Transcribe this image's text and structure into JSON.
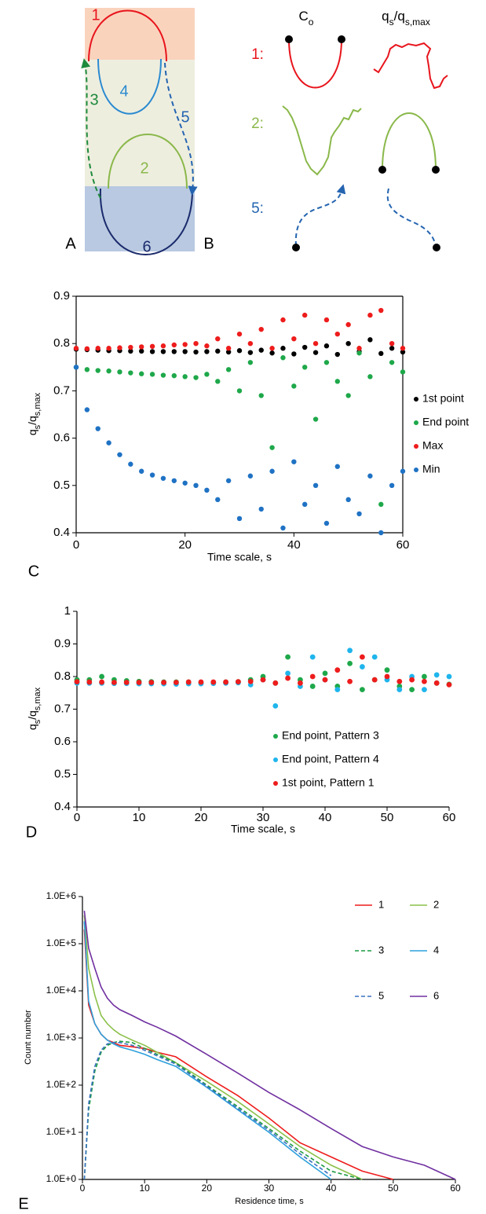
{
  "panel_a": {
    "panel_label": "A",
    "labels": [
      "1",
      "4",
      "2",
      "6",
      "3",
      "5"
    ]
  },
  "panel_b": {
    "panel_label": "B",
    "columns": [
      [
        "C",
        "o"
      ],
      [
        "q",
        "s",
        "/q",
        "s,max"
      ]
    ],
    "rows": [
      "1:",
      "2:",
      "5:"
    ]
  },
  "chart_data": [
    {
      "type": "scatter",
      "panel_label": "C",
      "x_label": "Time scale, s",
      "y_label": [
        "q",
        "s",
        "/q",
        "s,max"
      ],
      "xlim": [
        0,
        60
      ],
      "xticks": [
        0,
        20,
        40,
        60
      ],
      "ylim": [
        0.4,
        0.9
      ],
      "yticks": [
        0.4,
        0.5,
        0.6,
        0.7,
        0.8,
        0.9
      ],
      "legend": "right",
      "series": [
        {
          "name": "1st point",
          "color": "#000000",
          "x": [
            0,
            2,
            4,
            6,
            8,
            10,
            12,
            14,
            16,
            18,
            20,
            22,
            24,
            26,
            28,
            30,
            32,
            34,
            36,
            38,
            40,
            42,
            44,
            46,
            48,
            50,
            52,
            54,
            56,
            58,
            60
          ],
          "values": [
            0.788,
            0.787,
            0.786,
            0.785,
            0.785,
            0.784,
            0.784,
            0.783,
            0.783,
            0.783,
            0.783,
            0.782,
            0.783,
            0.784,
            0.782,
            0.785,
            0.781,
            0.786,
            0.78,
            0.79,
            0.778,
            0.792,
            0.781,
            0.795,
            0.777,
            0.8,
            0.783,
            0.808,
            0.779,
            0.79,
            0.782
          ]
        },
        {
          "name": "End point",
          "color": "#1ea84a",
          "x": [
            0,
            2,
            4,
            6,
            8,
            10,
            12,
            14,
            16,
            18,
            20,
            22,
            24,
            26,
            28,
            30,
            32,
            34,
            36,
            38,
            40,
            42,
            44,
            46,
            48,
            50,
            52,
            54,
            56,
            58,
            60
          ],
          "values": [
            0.75,
            0.745,
            0.743,
            0.742,
            0.74,
            0.738,
            0.736,
            0.735,
            0.733,
            0.732,
            0.73,
            0.728,
            0.735,
            0.72,
            0.745,
            0.7,
            0.76,
            0.69,
            0.58,
            0.77,
            0.71,
            0.75,
            0.64,
            0.76,
            0.72,
            0.69,
            0.78,
            0.73,
            0.46,
            0.76,
            0.74
          ]
        },
        {
          "name": "Max",
          "color": "#ee1c1c",
          "x": [
            0,
            2,
            4,
            6,
            8,
            10,
            12,
            14,
            16,
            18,
            20,
            22,
            24,
            26,
            28,
            30,
            32,
            34,
            36,
            38,
            40,
            42,
            44,
            46,
            48,
            50,
            52,
            54,
            56,
            58,
            60
          ],
          "values": [
            0.79,
            0.789,
            0.79,
            0.79,
            0.791,
            0.792,
            0.793,
            0.794,
            0.795,
            0.797,
            0.798,
            0.8,
            0.795,
            0.81,
            0.79,
            0.82,
            0.8,
            0.83,
            0.79,
            0.85,
            0.81,
            0.86,
            0.8,
            0.85,
            0.82,
            0.84,
            0.79,
            0.86,
            0.87,
            0.8,
            0.79
          ]
        },
        {
          "name": "Min",
          "color": "#1f72c4",
          "x": [
            0,
            2,
            4,
            6,
            8,
            10,
            12,
            14,
            16,
            18,
            20,
            22,
            24,
            26,
            28,
            30,
            32,
            34,
            36,
            38,
            40,
            42,
            44,
            46,
            48,
            50,
            52,
            54,
            56,
            58,
            60
          ],
          "values": [
            0.75,
            0.66,
            0.62,
            0.59,
            0.565,
            0.545,
            0.53,
            0.522,
            0.515,
            0.51,
            0.505,
            0.5,
            0.49,
            0.47,
            0.51,
            0.43,
            0.52,
            0.45,
            0.53,
            0.41,
            0.55,
            0.46,
            0.5,
            0.42,
            0.54,
            0.47,
            0.44,
            0.52,
            0.4,
            0.5,
            0.53
          ]
        }
      ]
    },
    {
      "type": "scatter",
      "panel_label": "D",
      "x_label": "Time scale, s",
      "y_label": [
        "q",
        "s",
        "/q",
        "s,max"
      ],
      "xlim": [
        0,
        60
      ],
      "xticks": [
        0,
        10,
        20,
        30,
        40,
        50,
        60
      ],
      "ylim": [
        0.4,
        1
      ],
      "yticks": [
        0.4,
        0.5,
        0.6,
        0.7,
        0.8,
        0.9,
        1
      ],
      "legend": "lower right",
      "series": [
        {
          "name": "End point, Pattern 3",
          "color": "#1ea84a",
          "x": [
            0,
            2,
            4,
            6,
            8,
            10,
            12,
            14,
            16,
            18,
            20,
            22,
            24,
            26,
            28,
            30,
            32,
            34,
            36,
            38,
            40,
            42,
            44,
            46,
            48,
            50,
            52,
            54,
            56,
            58,
            60
          ],
          "values": [
            0.79,
            0.79,
            0.8,
            0.79,
            0.787,
            0.785,
            0.784,
            0.783,
            0.783,
            0.783,
            0.782,
            0.782,
            0.783,
            0.784,
            0.79,
            0.8,
            0.78,
            0.86,
            0.79,
            0.77,
            0.81,
            0.77,
            0.84,
            0.76,
            0.79,
            0.82,
            0.77,
            0.76,
            0.8,
            0.78,
            0.776
          ]
        },
        {
          "name": "End point, Pattern 4",
          "color": "#1fb5ec",
          "x": [
            0,
            2,
            4,
            6,
            8,
            10,
            12,
            14,
            16,
            18,
            20,
            22,
            24,
            26,
            28,
            30,
            32,
            34,
            36,
            38,
            40,
            42,
            44,
            46,
            48,
            50,
            52,
            54,
            56,
            58,
            60
          ],
          "values": [
            0.78,
            0.78,
            0.78,
            0.779,
            0.779,
            0.778,
            0.778,
            0.778,
            0.777,
            0.778,
            0.778,
            0.779,
            0.78,
            0.781,
            0.775,
            0.79,
            0.71,
            0.81,
            0.77,
            0.86,
            0.79,
            0.76,
            0.88,
            0.83,
            0.86,
            0.79,
            0.76,
            0.8,
            0.76,
            0.805,
            0.8
          ]
        },
        {
          "name": "1st point, Pattern 1",
          "color": "#ee1c1c",
          "x": [
            0,
            2,
            4,
            6,
            8,
            10,
            12,
            14,
            16,
            18,
            20,
            22,
            24,
            26,
            28,
            30,
            32,
            34,
            36,
            38,
            40,
            42,
            44,
            46,
            48,
            50,
            52,
            54,
            56,
            58,
            60
          ],
          "values": [
            0.784,
            0.783,
            0.783,
            0.782,
            0.782,
            0.782,
            0.782,
            0.782,
            0.782,
            0.783,
            0.783,
            0.783,
            0.783,
            0.784,
            0.785,
            0.79,
            0.78,
            0.795,
            0.78,
            0.8,
            0.79,
            0.82,
            0.785,
            0.86,
            0.79,
            0.8,
            0.785,
            0.79,
            0.785,
            0.78,
            0.775
          ]
        }
      ]
    },
    {
      "type": "line",
      "panel_label": "E",
      "x_label": "Residence time, s",
      "y_label": [
        "Count number"
      ],
      "log_y": true,
      "xlim": [
        0,
        60
      ],
      "xticks": [
        0,
        10,
        20,
        30,
        40,
        50,
        60
      ],
      "ylim": [
        1,
        1000000
      ],
      "yticks": [
        {
          "value": 1,
          "label": "1.0E+0"
        },
        {
          "value": 10,
          "label": "1.0E+1"
        },
        {
          "value": 100,
          "label": "1.0E+2"
        },
        {
          "value": 1000,
          "label": "1.0E+3"
        },
        {
          "value": 10000,
          "label": "1.0E+4"
        },
        {
          "value": 100000,
          "label": "1.0E+5"
        },
        {
          "value": 1000000,
          "label": "1.0E+6"
        }
      ],
      "legend": "upper right",
      "x": [
        0.3,
        1,
        2,
        3,
        4,
        5,
        6,
        8,
        10,
        12,
        15,
        20,
        25,
        30,
        35,
        40,
        45,
        50,
        55,
        60
      ],
      "series": [
        {
          "name": "1",
          "color": "#ee1c1c",
          "line_style": "solid",
          "values": [
            200000,
            5000,
            2000,
            1200,
            900,
            800,
            700,
            650,
            600,
            500,
            400,
            150,
            60,
            20,
            6,
            3,
            1.5,
            1,
            null,
            null
          ]
        },
        {
          "name": "2",
          "color": "#8cc04a",
          "line_style": "solid",
          "values": [
            400000,
            30000,
            8000,
            3000,
            2000,
            1500,
            1200,
            900,
            700,
            500,
            300,
            120,
            45,
            15,
            5,
            2,
            1,
            null,
            null,
            null
          ]
        },
        {
          "name": "3",
          "color": "#1a9a40",
          "line_style": "dashed",
          "values": [
            1,
            30,
            200,
            500,
            700,
            800,
            850,
            800,
            600,
            450,
            300,
            100,
            35,
            12,
            4,
            1.5,
            1,
            null,
            null,
            null
          ]
        },
        {
          "name": "4",
          "color": "#2ea0dc",
          "line_style": "solid",
          "values": [
            300000,
            6000,
            2000,
            1200,
            900,
            750,
            650,
            550,
            450,
            350,
            250,
            90,
            30,
            10,
            3,
            1,
            null,
            null,
            null,
            null
          ]
        },
        {
          "name": "5",
          "color": "#3a70c0",
          "line_style": "dashed",
          "values": [
            1,
            40,
            250,
            550,
            750,
            800,
            800,
            700,
            550,
            420,
            280,
            95,
            32,
            11,
            3.5,
            1.2,
            null,
            null,
            null,
            null
          ]
        },
        {
          "name": "6",
          "color": "#7030a0",
          "line_style": "solid",
          "values": [
            500000,
            80000,
            30000,
            12000,
            7000,
            5000,
            4000,
            3000,
            2200,
            1700,
            1100,
            450,
            180,
            70,
            30,
            12,
            5,
            3,
            2,
            1
          ]
        }
      ]
    }
  ]
}
